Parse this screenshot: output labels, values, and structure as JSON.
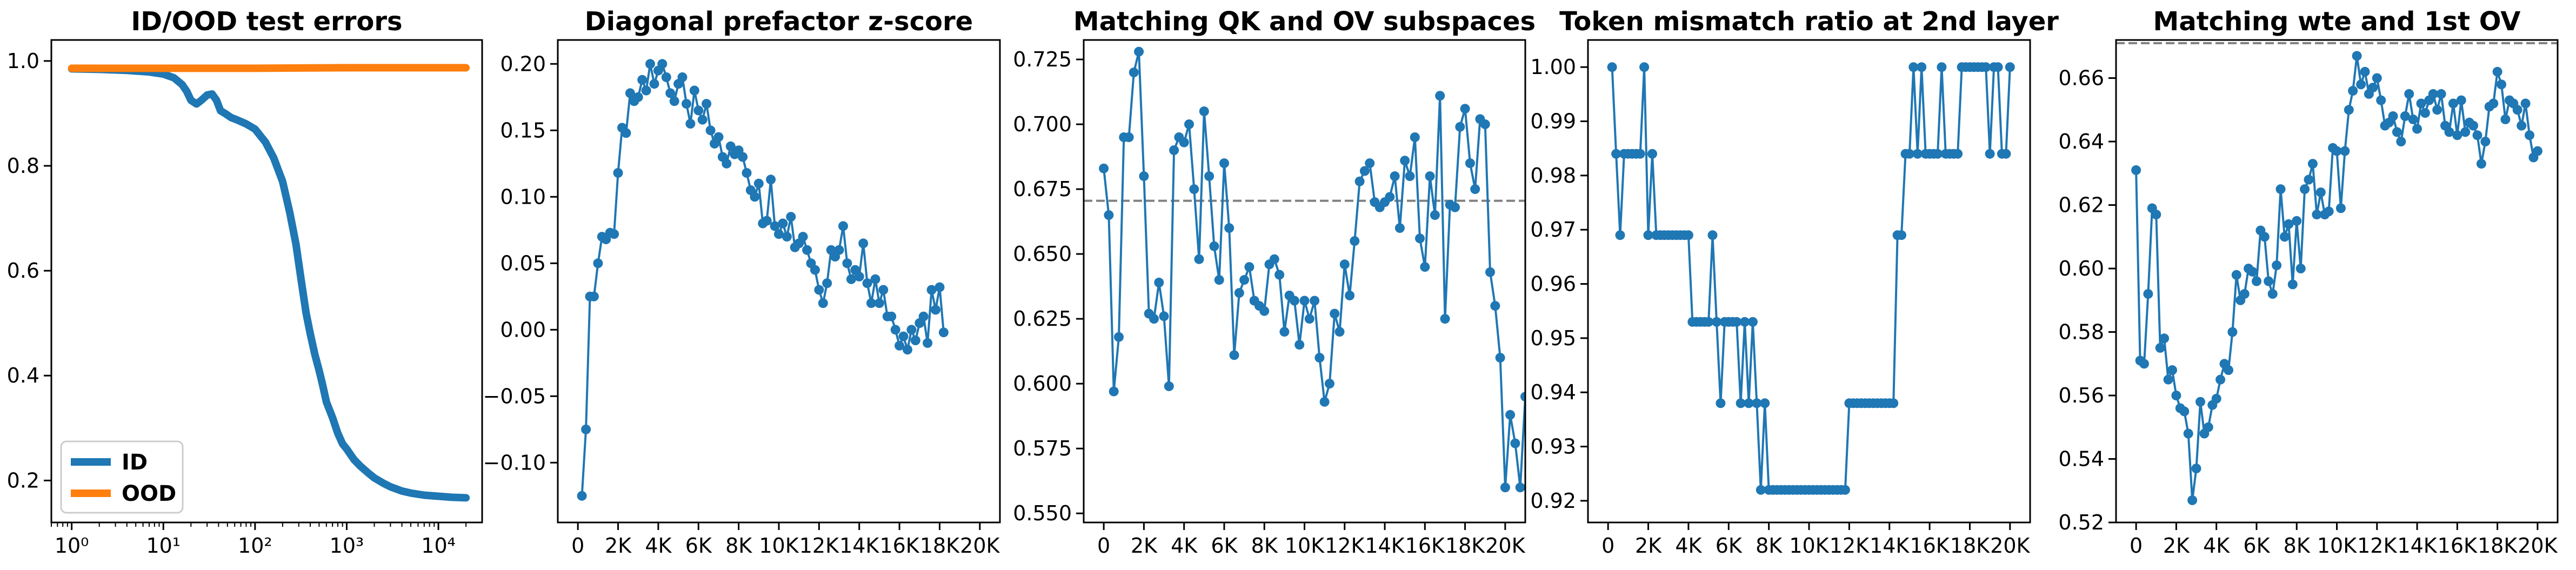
{
  "chart_data": [
    {
      "type": "line",
      "title": "ID/OOD test errors",
      "xscale": "log",
      "xlim": [
        0.6,
        30000
      ],
      "ylim": [
        0.12,
        1.04
      ],
      "xticks": [
        {
          "v": 1,
          "label": "10⁰"
        },
        {
          "v": 10,
          "label": "10¹"
        },
        {
          "v": 100,
          "label": "10²"
        },
        {
          "v": 1000,
          "label": "10³"
        },
        {
          "v": 10000,
          "label": "10⁴"
        }
      ],
      "yticks": [
        {
          "v": 0.2,
          "label": "0.2"
        },
        {
          "v": 0.4,
          "label": "0.4"
        },
        {
          "v": 0.6,
          "label": "0.6"
        },
        {
          "v": 0.8,
          "label": "0.8"
        },
        {
          "v": 1.0,
          "label": "1.0"
        }
      ],
      "legend": {
        "placement": "lower-left"
      },
      "series": [
        {
          "name": "ID",
          "color": "#1f77b4",
          "x": [
            1,
            2,
            4,
            7,
            10,
            13,
            16,
            18,
            20,
            23,
            26,
            30,
            34,
            38,
            42,
            48,
            55,
            65,
            80,
            100,
            130,
            160,
            200,
            240,
            280,
            320,
            360,
            400,
            450,
            500,
            550,
            600,
            700,
            800,
            900,
            1000,
            1200,
            1400,
            1700,
            2000,
            2500,
            3000,
            4000,
            5000,
            7000,
            10000,
            14000,
            20000
          ],
          "y": [
            0.985,
            0.984,
            0.982,
            0.979,
            0.975,
            0.968,
            0.955,
            0.942,
            0.925,
            0.918,
            0.925,
            0.935,
            0.937,
            0.925,
            0.905,
            0.899,
            0.892,
            0.887,
            0.88,
            0.87,
            0.845,
            0.815,
            0.77,
            0.71,
            0.65,
            0.58,
            0.52,
            0.48,
            0.44,
            0.41,
            0.38,
            0.35,
            0.32,
            0.29,
            0.27,
            0.26,
            0.24,
            0.228,
            0.215,
            0.205,
            0.195,
            0.188,
            0.18,
            0.176,
            0.172,
            0.17,
            0.168,
            0.167
          ]
        },
        {
          "name": "OOD",
          "color": "#ff7f0e",
          "x": [
            1,
            10,
            100,
            1000,
            10000,
            20000
          ],
          "y": [
            0.986,
            0.986,
            0.986,
            0.987,
            0.987,
            0.987
          ]
        }
      ]
    },
    {
      "type": "line",
      "title": "Diagonal prefactor z-score",
      "xlim": [
        -1000,
        21000
      ],
      "ylim": [
        -0.145,
        0.218
      ],
      "xticks": [
        {
          "v": 0,
          "label": "0"
        },
        {
          "v": 2000,
          "label": "2K"
        },
        {
          "v": 4000,
          "label": "4K"
        },
        {
          "v": 6000,
          "label": "6K"
        },
        {
          "v": 8000,
          "label": "8K"
        },
        {
          "v": 10000,
          "label": "10K"
        },
        {
          "v": 12000,
          "label": "12K"
        },
        {
          "v": 14000,
          "label": "14K"
        },
        {
          "v": 16000,
          "label": "16K"
        },
        {
          "v": 18000,
          "label": "18K"
        },
        {
          "v": 20000,
          "label": "20K"
        }
      ],
      "yticks": [
        {
          "v": -0.1,
          "label": "−0.10"
        },
        {
          "v": -0.05,
          "label": "−0.05"
        },
        {
          "v": 0,
          "label": "0.00"
        },
        {
          "v": 0.05,
          "label": "0.05"
        },
        {
          "v": 0.1,
          "label": "0.10"
        },
        {
          "v": 0.15,
          "label": "0.15"
        },
        {
          "v": 0.2,
          "label": "0.20"
        }
      ],
      "marker": true,
      "series": [
        {
          "color": "#1f77b4",
          "x_start": 200,
          "x_step": 200,
          "y": [
            -0.125,
            -0.075,
            0.025,
            0.025,
            0.05,
            0.07,
            0.068,
            0.073,
            0.072,
            0.118,
            0.152,
            0.148,
            0.178,
            0.172,
            0.175,
            0.188,
            0.18,
            0.2,
            0.185,
            0.195,
            0.2,
            0.19,
            0.178,
            0.172,
            0.185,
            0.19,
            0.17,
            0.155,
            0.18,
            0.165,
            0.158,
            0.17,
            0.15,
            0.14,
            0.145,
            0.13,
            0.125,
            0.138,
            0.132,
            0.135,
            0.13,
            0.118,
            0.105,
            0.1,
            0.11,
            0.08,
            0.082,
            0.113,
            0.078,
            0.072,
            0.08,
            0.07,
            0.085,
            0.062,
            0.065,
            0.07,
            0.06,
            0.05,
            0.045,
            0.03,
            0.02,
            0.035,
            0.06,
            0.055,
            0.06,
            0.078,
            0.05,
            0.038,
            0.045,
            0.04,
            0.065,
            0.035,
            0.02,
            0.038,
            0.02,
            0.03,
            0.01,
            0.01,
            0.0,
            -0.012,
            -0.005,
            -0.015,
            0.0,
            -0.008,
            0.005,
            0.01,
            -0.01,
            0.03,
            0.015,
            0.032,
            -0.002
          ]
        }
      ]
    },
    {
      "type": "line",
      "title": "Matching QK and OV subspaces",
      "xlim": [
        -1000,
        21000
      ],
      "ylim": [
        0.5465,
        0.7325
      ],
      "xticks": [
        {
          "v": 0,
          "label": "0"
        },
        {
          "v": 2000,
          "label": "2K"
        },
        {
          "v": 4000,
          "label": "4K"
        },
        {
          "v": 6000,
          "label": "6K"
        },
        {
          "v": 8000,
          "label": "8K"
        },
        {
          "v": 10000,
          "label": "10K"
        },
        {
          "v": 12000,
          "label": "12K"
        },
        {
          "v": 14000,
          "label": "14K"
        },
        {
          "v": 16000,
          "label": "16K"
        },
        {
          "v": 18000,
          "label": "18K"
        },
        {
          "v": 20000,
          "label": "20K"
        }
      ],
      "yticks": [
        {
          "v": 0.55,
          "label": "0.550"
        },
        {
          "v": 0.575,
          "label": "0.575"
        },
        {
          "v": 0.6,
          "label": "0.600"
        },
        {
          "v": 0.625,
          "label": "0.625"
        },
        {
          "v": 0.65,
          "label": "0.650"
        },
        {
          "v": 0.675,
          "label": "0.675"
        },
        {
          "v": 0.7,
          "label": "0.700"
        },
        {
          "v": 0.725,
          "label": "0.725"
        }
      ],
      "hline": 0.6705,
      "marker": true,
      "series": [
        {
          "color": "#1f77b4",
          "x_start": 0,
          "x_step": 250,
          "y": [
            0.683,
            0.665,
            0.597,
            0.618,
            0.695,
            0.695,
            0.72,
            0.728,
            0.68,
            0.627,
            0.625,
            0.639,
            0.626,
            0.599,
            0.69,
            0.695,
            0.693,
            0.7,
            0.675,
            0.648,
            0.705,
            0.68,
            0.653,
            0.64,
            0.685,
            0.66,
            0.611,
            0.635,
            0.64,
            0.645,
            0.632,
            0.63,
            0.628,
            0.646,
            0.648,
            0.642,
            0.62,
            0.634,
            0.632,
            0.615,
            0.632,
            0.625,
            0.632,
            0.61,
            0.593,
            0.6,
            0.627,
            0.62,
            0.646,
            0.634,
            0.655,
            0.678,
            0.682,
            0.685,
            0.67,
            0.668,
            0.67,
            0.672,
            0.68,
            0.66,
            0.686,
            0.68,
            0.695,
            0.656,
            0.645,
            0.68,
            0.665,
            0.711,
            0.625,
            0.669,
            0.668,
            0.699,
            0.706,
            0.685,
            0.675,
            0.702,
            0.7,
            0.643,
            0.63,
            0.61,
            0.56,
            0.588,
            0.577,
            0.56,
            0.595,
            0.6,
            0.603,
            0.626,
            0.582,
            0.56,
            0.555
          ]
        }
      ]
    },
    {
      "type": "line",
      "title": "Token mismatch ratio at 2nd layer",
      "xlim": [
        -1000,
        21000
      ],
      "ylim": [
        0.916,
        1.005
      ],
      "xticks": [
        {
          "v": 0,
          "label": "0"
        },
        {
          "v": 2000,
          "label": "2K"
        },
        {
          "v": 4000,
          "label": "4K"
        },
        {
          "v": 6000,
          "label": "6K"
        },
        {
          "v": 8000,
          "label": "8K"
        },
        {
          "v": 10000,
          "label": "10K"
        },
        {
          "v": 12000,
          "label": "12K"
        },
        {
          "v": 14000,
          "label": "14K"
        },
        {
          "v": 16000,
          "label": "16K"
        },
        {
          "v": 18000,
          "label": "18K"
        },
        {
          "v": 20000,
          "label": "20K"
        }
      ],
      "yticks": [
        {
          "v": 0.92,
          "label": "0.92"
        },
        {
          "v": 0.93,
          "label": "0.93"
        },
        {
          "v": 0.94,
          "label": "0.94"
        },
        {
          "v": 0.95,
          "label": "0.95"
        },
        {
          "v": 0.96,
          "label": "0.96"
        },
        {
          "v": 0.97,
          "label": "0.97"
        },
        {
          "v": 0.98,
          "label": "0.98"
        },
        {
          "v": 0.99,
          "label": "0.99"
        },
        {
          "v": 1.0,
          "label": "1.00"
        }
      ],
      "marker": true,
      "series": [
        {
          "color": "#1f77b4",
          "x_start": 200,
          "x_step": 200,
          "y": [
            1.0,
            0.984,
            0.969,
            0.984,
            0.984,
            0.984,
            0.984,
            0.984,
            1.0,
            0.969,
            0.984,
            0.969,
            0.969,
            0.969,
            0.969,
            0.969,
            0.969,
            0.969,
            0.969,
            0.969,
            0.953,
            0.953,
            0.953,
            0.953,
            0.953,
            0.969,
            0.953,
            0.938,
            0.953,
            0.953,
            0.953,
            0.953,
            0.938,
            0.953,
            0.938,
            0.953,
            0.938,
            0.922,
            0.938,
            0.922,
            0.922,
            0.922,
            0.922,
            0.922,
            0.922,
            0.922,
            0.922,
            0.922,
            0.922,
            0.922,
            0.922,
            0.922,
            0.922,
            0.922,
            0.922,
            0.922,
            0.922,
            0.922,
            0.922,
            0.938,
            0.938,
            0.938,
            0.938,
            0.938,
            0.938,
            0.938,
            0.938,
            0.938,
            0.938,
            0.938,
            0.938,
            0.969,
            0.969,
            0.984,
            0.984,
            1.0,
            0.984,
            1.0,
            0.984,
            0.984,
            0.984,
            0.984,
            1.0,
            0.984,
            0.984,
            0.984,
            0.984,
            1.0,
            1.0,
            1.0,
            1.0,
            1.0,
            1.0,
            1.0,
            0.984,
            1.0,
            1.0,
            0.984,
            0.984,
            1.0
          ]
        }
      ]
    },
    {
      "type": "line",
      "title": "Matching wte and 1st OV",
      "xlim": [
        -1000,
        21000
      ],
      "ylim": [
        0.52,
        0.672
      ],
      "xticks": [
        {
          "v": 0,
          "label": "0"
        },
        {
          "v": 2000,
          "label": "2K"
        },
        {
          "v": 4000,
          "label": "4K"
        },
        {
          "v": 6000,
          "label": "6K"
        },
        {
          "v": 8000,
          "label": "8K"
        },
        {
          "v": 10000,
          "label": "10K"
        },
        {
          "v": 12000,
          "label": "12K"
        },
        {
          "v": 14000,
          "label": "14K"
        },
        {
          "v": 16000,
          "label": "16K"
        },
        {
          "v": 18000,
          "label": "18K"
        },
        {
          "v": 20000,
          "label": "20K"
        }
      ],
      "yticks": [
        {
          "v": 0.52,
          "label": "0.52"
        },
        {
          "v": 0.54,
          "label": "0.54"
        },
        {
          "v": 0.56,
          "label": "0.56"
        },
        {
          "v": 0.58,
          "label": "0.58"
        },
        {
          "v": 0.6,
          "label": "0.60"
        },
        {
          "v": 0.62,
          "label": "0.62"
        },
        {
          "v": 0.64,
          "label": "0.64"
        },
        {
          "v": 0.66,
          "label": "0.66"
        }
      ],
      "hline": 0.671,
      "marker": true,
      "series": [
        {
          "color": "#1f77b4",
          "x_start": 0,
          "x_step": 200,
          "y": [
            0.631,
            0.571,
            0.57,
            0.592,
            0.619,
            0.617,
            0.575,
            0.578,
            0.565,
            0.568,
            0.56,
            0.556,
            0.555,
            0.548,
            0.527,
            0.537,
            0.558,
            0.548,
            0.55,
            0.557,
            0.559,
            0.565,
            0.57,
            0.568,
            0.58,
            0.598,
            0.59,
            0.592,
            0.6,
            0.599,
            0.596,
            0.612,
            0.61,
            0.596,
            0.592,
            0.601,
            0.625,
            0.61,
            0.614,
            0.595,
            0.615,
            0.6,
            0.625,
            0.628,
            0.633,
            0.617,
            0.624,
            0.617,
            0.618,
            0.638,
            0.637,
            0.619,
            0.637,
            0.65,
            0.656,
            0.667,
            0.658,
            0.662,
            0.655,
            0.657,
            0.66,
            0.653,
            0.645,
            0.646,
            0.648,
            0.643,
            0.64,
            0.648,
            0.655,
            0.647,
            0.644,
            0.652,
            0.649,
            0.653,
            0.655,
            0.65,
            0.655,
            0.645,
            0.643,
            0.652,
            0.642,
            0.653,
            0.643,
            0.646,
            0.645,
            0.642,
            0.633,
            0.64,
            0.651,
            0.652,
            0.662,
            0.658,
            0.647,
            0.653,
            0.652,
            0.65,
            0.645,
            0.652,
            0.642,
            0.635,
            0.637
          ]
        }
      ]
    }
  ]
}
